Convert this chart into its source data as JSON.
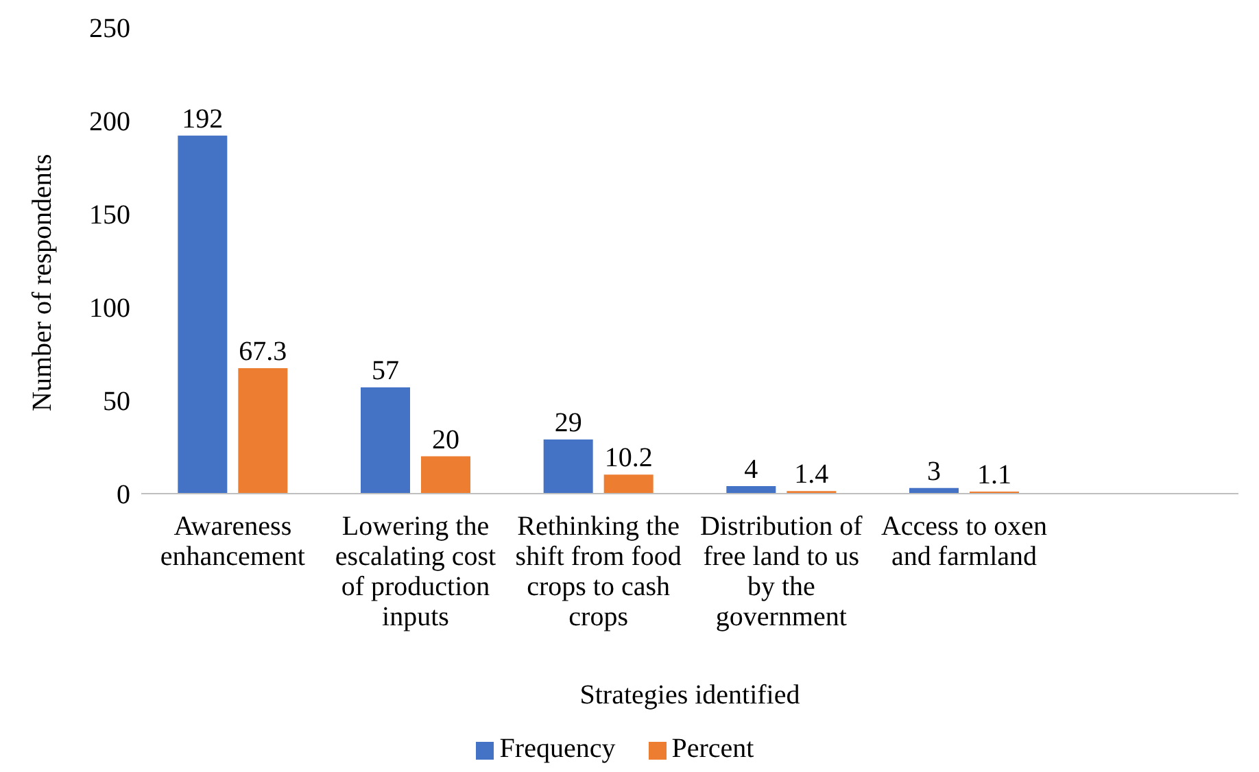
{
  "chart_data": {
    "type": "bar",
    "xlabel": "Strategies identified",
    "ylabel": "Number of respondents",
    "categories": [
      "Awareness enhancement",
      "Lowering the escalating cost of production inputs",
      "Rethinking the shift from food crops to cash crops",
      "Distribution of free land to us by the government",
      "Access to oxen and farmland",
      null
    ],
    "series": [
      {
        "name": "Frequency",
        "color": "#4472c4",
        "values": [
          192,
          57,
          29,
          4,
          3,
          null
        ]
      },
      {
        "name": "Percent",
        "color": "#ed7d31",
        "values": [
          67.3,
          20,
          10.2,
          1.4,
          1.1,
          null
        ]
      }
    ],
    "ylim": [
      0,
      250
    ],
    "yticks": [
      0,
      50,
      100,
      150,
      200,
      250
    ],
    "grid": false,
    "legend": "bottom",
    "data_labels": true
  }
}
